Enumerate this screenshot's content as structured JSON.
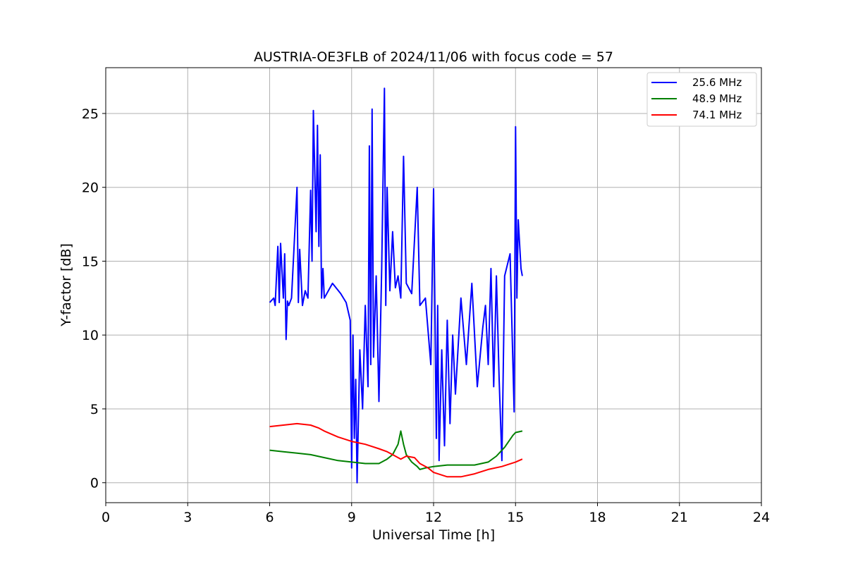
{
  "chart_data": {
    "type": "line",
    "title": "AUSTRIA-OE3FLB of 2024/11/06 with focus code = 57",
    "xlabel": "Universal Time [h]",
    "ylabel": "Y-factor [dB]",
    "xlim": [
      0,
      24
    ],
    "ylim": [
      -1.35,
      28.1
    ],
    "xticks": [
      0,
      3,
      6,
      9,
      12,
      15,
      18,
      21,
      24
    ],
    "yticks": [
      0,
      5,
      10,
      15,
      20,
      25
    ],
    "grid": true,
    "legend_position": "upper right",
    "series": [
      {
        "name": "25.6 MHz",
        "color": "#0000ff",
        "x": [
          6.0,
          6.15,
          6.2,
          6.3,
          6.35,
          6.4,
          6.5,
          6.55,
          6.6,
          6.65,
          6.7,
          6.8,
          7.0,
          7.05,
          7.1,
          7.2,
          7.3,
          7.4,
          7.5,
          7.55,
          7.6,
          7.7,
          7.75,
          7.8,
          7.85,
          7.9,
          7.95,
          8.0,
          8.3,
          8.6,
          8.8,
          8.95,
          9.0,
          9.05,
          9.1,
          9.15,
          9.2,
          9.3,
          9.4,
          9.5,
          9.6,
          9.65,
          9.7,
          9.75,
          9.8,
          9.9,
          10.0,
          10.1,
          10.2,
          10.25,
          10.3,
          10.4,
          10.5,
          10.6,
          10.7,
          10.8,
          10.9,
          11.0,
          11.2,
          11.4,
          11.5,
          11.7,
          11.9,
          12.0,
          12.1,
          12.15,
          12.2,
          12.3,
          12.4,
          12.5,
          12.6,
          12.7,
          12.8,
          13.0,
          13.2,
          13.4,
          13.6,
          13.8,
          13.9,
          14.0,
          14.1,
          14.2,
          14.3,
          14.4,
          14.5,
          14.6,
          14.8,
          14.95,
          15.0,
          15.05,
          15.1,
          15.2,
          15.25
        ],
        "y": [
          12.2,
          12.5,
          12.0,
          16.0,
          12.2,
          16.2,
          12.5,
          15.5,
          9.7,
          12.3,
          12.0,
          12.5,
          20.0,
          12.2,
          15.8,
          12.0,
          13.0,
          12.5,
          19.8,
          15.0,
          25.2,
          17.0,
          24.2,
          16.0,
          22.2,
          12.5,
          14.5,
          12.5,
          13.5,
          12.8,
          12.2,
          11.0,
          1.0,
          10.0,
          3.0,
          7.0,
          0.0,
          9.0,
          5.0,
          12.0,
          6.5,
          22.8,
          8.0,
          25.3,
          8.5,
          14.0,
          5.5,
          14.5,
          26.7,
          12.0,
          20.0,
          13.0,
          17.0,
          13.2,
          14.0,
          12.5,
          22.1,
          13.5,
          12.8,
          20.0,
          12.0,
          12.5,
          8.0,
          19.9,
          3.0,
          12.0,
          1.5,
          9.0,
          2.5,
          11.0,
          4.0,
          10.0,
          6.0,
          12.5,
          8.0,
          13.5,
          6.5,
          10.5,
          12.0,
          8.0,
          14.5,
          6.5,
          14.0,
          7.0,
          1.5,
          14.0,
          15.5,
          4.8,
          24.1,
          12.5,
          17.8,
          14.5,
          14.0
        ]
      },
      {
        "name": "48.9 MHz",
        "color": "#008000",
        "x": [
          6.0,
          6.5,
          7.0,
          7.5,
          8.0,
          8.5,
          9.0,
          9.5,
          10.0,
          10.3,
          10.5,
          10.7,
          10.8,
          10.9,
          11.0,
          11.2,
          11.4,
          11.5,
          11.7,
          12.0,
          12.5,
          13.0,
          13.5,
          14.0,
          14.3,
          14.6,
          14.9,
          15.0,
          15.25
        ],
        "y": [
          2.2,
          2.1,
          2.0,
          1.9,
          1.7,
          1.5,
          1.4,
          1.3,
          1.3,
          1.6,
          1.9,
          2.6,
          3.5,
          2.6,
          1.9,
          1.4,
          1.1,
          0.9,
          1.0,
          1.1,
          1.2,
          1.2,
          1.2,
          1.4,
          1.8,
          2.4,
          3.2,
          3.4,
          3.5
        ]
      },
      {
        "name": "74.1 MHz",
        "color": "#ff0000",
        "x": [
          6.0,
          6.5,
          7.0,
          7.5,
          7.8,
          8.0,
          8.5,
          9.0,
          9.5,
          10.0,
          10.3,
          10.5,
          10.8,
          11.0,
          11.3,
          11.5,
          11.8,
          12.0,
          12.5,
          13.0,
          13.5,
          14.0,
          14.5,
          15.0,
          15.25
        ],
        "y": [
          3.8,
          3.9,
          4.0,
          3.9,
          3.7,
          3.5,
          3.1,
          2.8,
          2.6,
          2.3,
          2.1,
          1.9,
          1.6,
          1.8,
          1.7,
          1.3,
          1.0,
          0.7,
          0.4,
          0.4,
          0.6,
          0.9,
          1.1,
          1.4,
          1.6
        ]
      }
    ]
  }
}
